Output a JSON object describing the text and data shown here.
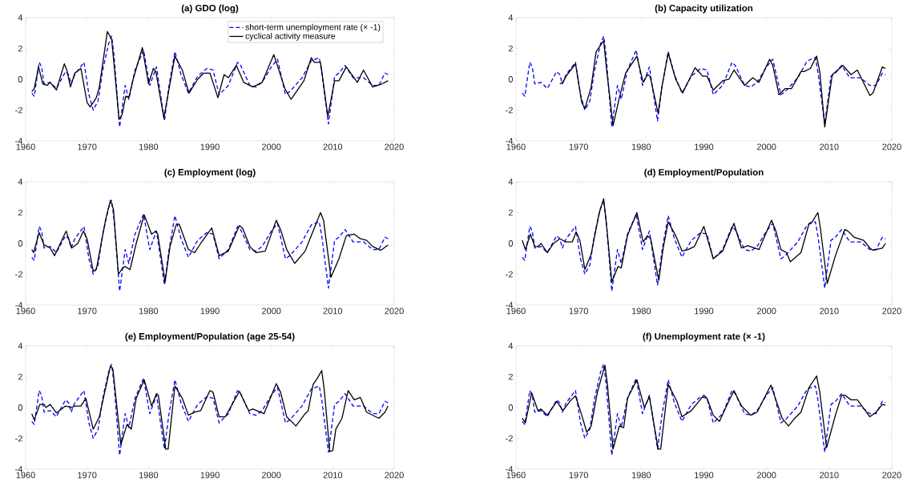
{
  "chart_data": [
    {
      "type": "line",
      "title": "(a) GDO (log)",
      "xlim": [
        1960,
        2020
      ],
      "xticks": [
        1960,
        1970,
        1980,
        1990,
        2000,
        2010,
        2020
      ],
      "ylim": [
        -4,
        4
      ],
      "yticks": [
        -4,
        -2,
        0,
        2,
        4
      ],
      "legend": "top right",
      "series": [
        {
          "name": "short-term unemployment rate (× -1)",
          "color": "#0000ff",
          "line_style": "dashed",
          "x": [
            1961,
            1961.4,
            1962.2,
            1962.6,
            1963,
            1964,
            1965,
            1966.5,
            1967,
            1967.4,
            1968,
            1969.5,
            1970.3,
            1971,
            1971.8,
            1972.5,
            1973.5,
            1974,
            1974.4,
            1975.3,
            1976.2,
            1976.8,
            1977.8,
            1979.2,
            1980.2,
            1981.3,
            1982.6,
            1983.3,
            1984.3,
            1985.3,
            1986.5,
            1988,
            1989.5,
            1990.5,
            1991.5,
            1993,
            1994.5,
            1995,
            1996.5,
            1997.5,
            1998.5,
            2000,
            2001,
            2002.3,
            2003,
            2005,
            2006.5,
            2007.8,
            2008.2,
            2009.3,
            2010.3,
            2011,
            2012,
            2013.3,
            2015,
            2016.5,
            2017.5,
            2018.5,
            2019
          ],
          "values": [
            -0.9,
            -1.1,
            1.1,
            0.8,
            -0.3,
            -0.2,
            -0.6,
            0.5,
            0.3,
            -0.3,
            0.3,
            1.1,
            -1.0,
            -2.0,
            -1.4,
            0.5,
            2.3,
            2.8,
            1.5,
            -3.1,
            -0.4,
            -1.3,
            0.6,
            1.9,
            -0.4,
            0.8,
            -2.7,
            -0.5,
            1.8,
            0.3,
            -0.9,
            0.2,
            0.7,
            0.6,
            -1.0,
            -0.4,
            1.1,
            0.9,
            -0.4,
            -0.5,
            -0.2,
            0.8,
            1.3,
            -1.0,
            -0.8,
            0.1,
            1.2,
            1.4,
            0.5,
            -2.9,
            0.2,
            0.4,
            0.9,
            0.1,
            0.1,
            -0.4,
            -0.4,
            0.4,
            0.3
          ]
        },
        {
          "name": "cyclical activity measure",
          "color": "#000000",
          "line_style": "solid",
          "x": [
            1961,
            1961.4,
            1962.1,
            1962.8,
            1963.5,
            1964,
            1965,
            1966.3,
            1966.7,
            1967.3,
            1968,
            1969,
            1970,
            1970.5,
            1971.5,
            1972,
            1973.3,
            1974,
            1974.5,
            1975.2,
            1975.7,
            1976.3,
            1976.8,
            1977.5,
            1979,
            1980,
            1980.8,
            1981.2,
            1982.5,
            1984.3,
            1985.5,
            1986.6,
            1988,
            1989,
            1990,
            1991.3,
            1992.3,
            1993,
            1994.3,
            1995.5,
            1997,
            1998.5,
            2000.4,
            2001.3,
            2002.2,
            2003.2,
            2005.3,
            2006.5,
            2007,
            2008,
            2009.2,
            2010.3,
            2011,
            2012.2,
            2014,
            2015,
            2016.5,
            2018,
            2019
          ],
          "values": [
            -0.8,
            -0.6,
            0.8,
            -0.3,
            -0.4,
            -0.2,
            -0.7,
            1.0,
            0.6,
            -0.5,
            0.4,
            0.7,
            -1.5,
            -1.8,
            -1.2,
            -0.5,
            3.1,
            2.6,
            0.5,
            -2.6,
            -2.3,
            -1.1,
            -1.2,
            0,
            2.05,
            -0.3,
            0.7,
            0.5,
            -2.5,
            1.5,
            0.6,
            -0.9,
            0,
            0.4,
            0.4,
            -1.2,
            0.3,
            0.1,
            0.9,
            -0.2,
            -0.5,
            -0.2,
            1.6,
            0.5,
            -0.6,
            -1.3,
            -0.1,
            1.4,
            1.1,
            1.1,
            -2.4,
            -0.1,
            -0.1,
            0.8,
            -0.2,
            0.6,
            -0.5,
            -0.3,
            -0.1
          ]
        }
      ]
    },
    {
      "type": "line",
      "title": "(b) Capacity utilization",
      "xlim": [
        1960,
        2020
      ],
      "xticks": [
        1960,
        1970,
        1980,
        1990,
        2000,
        2010,
        2020
      ],
      "ylim": [
        -4,
        4
      ],
      "yticks": [
        -4,
        -2,
        0,
        2,
        4
      ],
      "series": [
        {
          "color": "#0000ff",
          "line_style": "dashed",
          "x": [
            1961,
            1961.4,
            1962.2,
            1962.6,
            1963,
            1964,
            1965,
            1966.5,
            1967,
            1967.4,
            1968,
            1969.5,
            1970.3,
            1971,
            1971.8,
            1972.5,
            1973.5,
            1974,
            1974.4,
            1975.3,
            1976.2,
            1976.8,
            1977.8,
            1979.2,
            1980.2,
            1981.3,
            1982.6,
            1983.3,
            1984.3,
            1985.3,
            1986.5,
            1988,
            1989.5,
            1990.5,
            1991.5,
            1993,
            1994.5,
            1995,
            1996.5,
            1997.5,
            1998.5,
            2000,
            2001,
            2002.3,
            2003,
            2005,
            2006.5,
            2007.8,
            2008.2,
            2009.3,
            2010.3,
            2011,
            2012,
            2013.3,
            2015,
            2016.5,
            2017.5,
            2018.5,
            2019
          ],
          "values": [
            -0.9,
            -1.1,
            1.1,
            0.8,
            -0.3,
            -0.2,
            -0.6,
            0.5,
            0.3,
            -0.3,
            0.3,
            1.1,
            -1.0,
            -2.0,
            -1.4,
            0.5,
            2.3,
            2.8,
            1.5,
            -3.1,
            -0.4,
            -1.3,
            0.6,
            1.9,
            -0.4,
            0.8,
            -2.7,
            -0.5,
            1.8,
            0.3,
            -0.9,
            0.2,
            0.7,
            0.6,
            -1.0,
            -0.4,
            1.1,
            0.9,
            -0.4,
            -0.5,
            -0.2,
            0.8,
            1.3,
            -1.0,
            -0.8,
            0.1,
            1.2,
            1.4,
            0.5,
            -2.9,
            0.2,
            0.4,
            0.9,
            0.1,
            0.1,
            -0.4,
            -0.4,
            0.4,
            0.3
          ]
        },
        {
          "color": "#000000",
          "line_style": "solid",
          "x": [
            1967,
            1967.5,
            1968,
            1969.5,
            1970.5,
            1971,
            1972,
            1972.8,
            1974,
            1974.5,
            1975.5,
            1976.5,
            1977.5,
            1979.3,
            1980.3,
            1981,
            1981.4,
            1982.7,
            1983.3,
            1984.3,
            1985.5,
            1986.6,
            1988.6,
            1989.8,
            1990.5,
            1991.5,
            1993,
            1994,
            1994.8,
            1996.5,
            1997.8,
            1998.8,
            2000.5,
            2001,
            2002,
            2003,
            2004,
            2005.5,
            2006,
            2007,
            2008,
            2008.5,
            2009.3,
            2010.5,
            2012.2,
            2013.5,
            2014.5,
            2016.5,
            2017,
            2018.5,
            2019
          ],
          "values": [
            -0.3,
            -0.2,
            0.2,
            1.0,
            -1.5,
            -1.9,
            -0.5,
            1.8,
            2.5,
            0.5,
            -3.0,
            -1.2,
            0.4,
            1.5,
            -0.2,
            0.3,
            0.2,
            -2.2,
            -0.5,
            1.7,
            0,
            -0.9,
            0.75,
            0.2,
            0.2,
            -0.7,
            -0.1,
            0,
            0.6,
            -0.4,
            0.1,
            -0.2,
            1.3,
            0.9,
            -1.0,
            -0.6,
            -0.6,
            0.5,
            0.5,
            0.7,
            1.5,
            0.5,
            -3.1,
            0.3,
            0.9,
            0.3,
            0.6,
            -1.05,
            -0.9,
            0.8,
            0.7
          ]
        }
      ]
    },
    {
      "type": "line",
      "title": "(c) Employment (log)",
      "xlim": [
        1960,
        2020
      ],
      "xticks": [
        1960,
        1970,
        1980,
        1990,
        2000,
        2010,
        2020
      ],
      "ylim": [
        -4,
        4
      ],
      "yticks": [
        -4,
        -2,
        0,
        2,
        4
      ],
      "series": [
        {
          "color": "#0000ff",
          "line_style": "dashed",
          "x": [
            1961,
            1961.4,
            1962.2,
            1962.6,
            1963,
            1964,
            1965,
            1966.5,
            1967,
            1967.4,
            1968,
            1969.5,
            1970.3,
            1971,
            1971.8,
            1972.5,
            1973.5,
            1974,
            1974.4,
            1975.3,
            1976.2,
            1976.8,
            1977.8,
            1979.2,
            1980.2,
            1981.3,
            1982.6,
            1983.3,
            1984.3,
            1985.3,
            1986.5,
            1988,
            1989.5,
            1990.5,
            1991.5,
            1993,
            1994.5,
            1995,
            1996.5,
            1997.5,
            1998.5,
            2000,
            2001,
            2002.3,
            2003,
            2005,
            2006.5,
            2007.8,
            2008.2,
            2009.3,
            2010.3,
            2011,
            2012,
            2013.3,
            2015,
            2016.5,
            2017.5,
            2018.5,
            2019
          ],
          "values": [
            -0.9,
            -1.1,
            1.1,
            0.8,
            -0.3,
            -0.2,
            -0.6,
            0.5,
            0.3,
            -0.3,
            0.3,
            1.1,
            -1.0,
            -2.0,
            -1.4,
            0.5,
            2.3,
            2.8,
            1.5,
            -3.1,
            -0.4,
            -1.3,
            0.6,
            1.9,
            -0.4,
            0.8,
            -2.7,
            -0.5,
            1.8,
            0.3,
            -0.9,
            0.2,
            0.7,
            0.6,
            -1.0,
            -0.4,
            1.1,
            0.9,
            -0.4,
            -0.5,
            -0.2,
            0.8,
            1.3,
            -1.0,
            -0.8,
            0.1,
            1.2,
            1.4,
            0.5,
            -2.9,
            0.2,
            0.4,
            0.9,
            0.1,
            0.1,
            -0.4,
            -0.4,
            0.4,
            0.3
          ]
        },
        {
          "color": "#000000",
          "line_style": "solid",
          "x": [
            1961,
            1961.3,
            1962.2,
            1963,
            1964,
            1964.7,
            1966,
            1966.6,
            1967.5,
            1968.5,
            1969.4,
            1970,
            1971,
            1971.5,
            1973,
            1973.8,
            1974.3,
            1975.1,
            1975.8,
            1976.2,
            1977,
            1978,
            1979.3,
            1980.5,
            1981.2,
            1981.5,
            1982.7,
            1983.5,
            1984.5,
            1985,
            1986.5,
            1987.5,
            1988.5,
            1990.3,
            1991.5,
            1993,
            1994.8,
            1995.3,
            1996.5,
            1997.5,
            1999,
            2000.8,
            2001.5,
            2002.5,
            2003.8,
            2005.5,
            2006.5,
            2008,
            2008.5,
            2009.7,
            2011,
            2012.2,
            2013.5,
            2014.5,
            2015.5,
            2016.5,
            2017.8,
            2019
          ],
          "values": [
            -0.4,
            -0.6,
            0.7,
            -0.1,
            -0.3,
            -0.8,
            0.3,
            0.8,
            -0.3,
            0.0,
            0.8,
            0.3,
            -1.8,
            -1.7,
            1.5,
            2.8,
            2.2,
            -2.0,
            -1.6,
            -1.5,
            -1.7,
            0,
            1.85,
            0.6,
            0.8,
            0.6,
            -2.5,
            -0.2,
            1.2,
            1.25,
            -0.4,
            -0.6,
            0,
            1.0,
            -0.8,
            -0.5,
            1.15,
            1.0,
            -0.2,
            -0.6,
            -0.5,
            1.5,
            0.9,
            -0.4,
            -1.3,
            -0.5,
            0.5,
            2.0,
            1.5,
            -2.2,
            -1.0,
            0.5,
            0.6,
            0.3,
            0.2,
            -0.2,
            -0.45,
            -0.1
          ]
        }
      ]
    },
    {
      "type": "line",
      "title": "(d) Employment/Population",
      "xlim": [
        1960,
        2020
      ],
      "xticks": [
        1960,
        1970,
        1980,
        1990,
        2000,
        2010,
        2020
      ],
      "ylim": [
        -4,
        4
      ],
      "yticks": [
        -4,
        -2,
        0,
        2,
        4
      ],
      "series": [
        {
          "color": "#0000ff",
          "line_style": "dashed",
          "x": [
            1961,
            1961.4,
            1962.2,
            1962.6,
            1963,
            1964,
            1965,
            1966.5,
            1967,
            1967.4,
            1968,
            1969.5,
            1970.3,
            1971,
            1971.8,
            1972.5,
            1973.5,
            1974,
            1974.4,
            1975.3,
            1976.2,
            1976.8,
            1977.8,
            1979.2,
            1980.2,
            1981.3,
            1982.6,
            1983.3,
            1984.3,
            1985.3,
            1986.5,
            1988,
            1989.5,
            1990.5,
            1991.5,
            1993,
            1994.5,
            1995,
            1996.5,
            1997.5,
            1998.5,
            2000,
            2001,
            2002.3,
            2003,
            2005,
            2006.5,
            2007.8,
            2008.2,
            2009.3,
            2010.3,
            2011,
            2012,
            2013.3,
            2015,
            2016.5,
            2017.5,
            2018.5,
            2019
          ],
          "values": [
            -0.9,
            -1.1,
            1.1,
            0.8,
            -0.3,
            -0.2,
            -0.6,
            0.5,
            0.3,
            -0.3,
            0.3,
            1.1,
            -1.0,
            -2.0,
            -1.4,
            0.5,
            2.3,
            2.8,
            1.5,
            -3.1,
            -0.4,
            -1.3,
            0.6,
            1.9,
            -0.4,
            0.8,
            -2.7,
            -0.5,
            1.8,
            0.3,
            -0.9,
            0.2,
            0.7,
            0.6,
            -1.0,
            -0.4,
            1.1,
            0.9,
            -0.4,
            -0.5,
            -0.2,
            0.8,
            1.3,
            -1.0,
            -0.8,
            0.1,
            1.2,
            1.4,
            0.5,
            -2.9,
            0.2,
            0.4,
            0.9,
            0.1,
            0.1,
            -0.4,
            -0.4,
            0.4,
            0.3
          ]
        },
        {
          "color": "#000000",
          "line_style": "solid",
          "x": [
            1961,
            1961.5,
            1962.3,
            1963,
            1963.5,
            1964,
            1965,
            1966,
            1967,
            1968,
            1969,
            1969.6,
            1970.2,
            1971,
            1972,
            1973.3,
            1974,
            1974.5,
            1975.3,
            1976.3,
            1976.8,
            1977.8,
            1979.3,
            1980.3,
            1981,
            1981.5,
            1982.8,
            1983.5,
            1984.3,
            1985.5,
            1986.5,
            1987.5,
            1988.5,
            1990,
            1991.5,
            1993,
            1994.8,
            1996,
            1997,
            1998.8,
            2000.8,
            2001.5,
            2002.3,
            2003.2,
            2003.8,
            2005.5,
            2006.8,
            2007.3,
            2008.2,
            2008.6,
            2009.7,
            2011,
            2012.5,
            2013,
            2014,
            2015.5,
            2016.5,
            2017,
            2018.5,
            2019
          ],
          "values": [
            0.2,
            -0.4,
            0.6,
            -0.2,
            -0.2,
            0,
            -0.6,
            0,
            0.3,
            0.1,
            0.1,
            0.75,
            0.2,
            -1.7,
            -0.7,
            2.0,
            2.9,
            1.0,
            -2.5,
            -1.5,
            -1.6,
            0.5,
            2.0,
            0.1,
            0.5,
            0.3,
            -2.4,
            -0.3,
            1.4,
            0.5,
            -0.5,
            -0.4,
            -0.2,
            1.1,
            -1.0,
            -0.5,
            1.3,
            -0.3,
            -0.15,
            -0.4,
            1.5,
            0.8,
            -0.4,
            -0.6,
            -1.2,
            -0.6,
            1.3,
            1.4,
            2.0,
            1.0,
            -2.6,
            -0.8,
            0.9,
            0.8,
            0.4,
            0.2,
            -0.3,
            -0.45,
            -0.3,
            0.0
          ]
        }
      ]
    },
    {
      "type": "line",
      "title": "(e) Employment/Population (age 25-54)",
      "xlim": [
        1960,
        2020
      ],
      "xticks": [
        1960,
        1970,
        1980,
        1990,
        2000,
        2010,
        2020
      ],
      "ylim": [
        -4,
        4
      ],
      "yticks": [
        -4,
        -2,
        0,
        2,
        4
      ],
      "series": [
        {
          "color": "#0000ff",
          "line_style": "dashed",
          "x": [
            1961,
            1961.4,
            1962.2,
            1962.6,
            1963,
            1964,
            1965,
            1966.5,
            1967,
            1967.4,
            1968,
            1969.5,
            1970.3,
            1971,
            1971.8,
            1972.5,
            1973.5,
            1974,
            1974.4,
            1975.3,
            1976.2,
            1976.8,
            1977.8,
            1979.2,
            1980.2,
            1981.3,
            1982.6,
            1983.3,
            1984.3,
            1985.3,
            1986.5,
            1988,
            1989.5,
            1990.5,
            1991.5,
            1993,
            1994.5,
            1995,
            1996.5,
            1997.5,
            1998.5,
            2000,
            2001,
            2002.3,
            2003,
            2005,
            2006.5,
            2007.8,
            2008.2,
            2009.3,
            2010.3,
            2011,
            2012,
            2013.3,
            2015,
            2016.5,
            2017.5,
            2018.5,
            2019
          ],
          "values": [
            -0.9,
            -1.1,
            1.1,
            0.8,
            -0.3,
            -0.2,
            -0.6,
            0.5,
            0.3,
            -0.3,
            0.3,
            1.1,
            -1.0,
            -2.0,
            -1.4,
            0.5,
            2.3,
            2.8,
            1.5,
            -3.1,
            -0.4,
            -1.3,
            0.6,
            1.9,
            -0.4,
            0.8,
            -2.7,
            -0.5,
            1.8,
            0.3,
            -0.9,
            0.2,
            0.7,
            0.6,
            -1.0,
            -0.4,
            1.1,
            0.9,
            -0.4,
            -0.5,
            -0.2,
            0.8,
            1.3,
            -1.0,
            -0.8,
            0.1,
            1.2,
            1.4,
            0.5,
            -2.9,
            0.2,
            0.4,
            0.9,
            0.1,
            0.1,
            -0.4,
            -0.4,
            0.4,
            0.3
          ]
        },
        {
          "color": "#000000",
          "line_style": "solid",
          "x": [
            1961,
            1961.4,
            1962.3,
            1963,
            1963.3,
            1964,
            1965,
            1966.5,
            1967.5,
            1968,
            1969,
            1969.8,
            1971,
            1972,
            1973.8,
            1974.2,
            1975.5,
            1976.5,
            1977.2,
            1978,
            1979.3,
            1980.5,
            1981.3,
            1981.6,
            1982.8,
            1983.2,
            1984.3,
            1985.5,
            1986.5,
            1987.5,
            1988.5,
            1990,
            1990.5,
            1991.5,
            1992.5,
            1994.8,
            1996.3,
            1997,
            1998.8,
            2000.8,
            2001.5,
            2002.5,
            2004,
            2005.5,
            2006,
            2006.8,
            2007.5,
            2008.2,
            2008.6,
            2009.5,
            2010,
            2010.5,
            2011.5,
            2012.5,
            2013.5,
            2014.5,
            2015.5,
            2017.5,
            2018.5,
            2019
          ],
          "values": [
            -0.4,
            -0.8,
            0.2,
            0.2,
            0,
            0.2,
            -0.35,
            0.1,
            0,
            0.1,
            0.1,
            0.6,
            -1.4,
            -0.6,
            2.7,
            2.5,
            -2.4,
            -1.1,
            -1.4,
            0.6,
            1.8,
            0.1,
            0.9,
            0.8,
            -2.7,
            -2.7,
            1.4,
            0.6,
            -0.5,
            -0.3,
            -0.2,
            1.1,
            1.0,
            -0.6,
            -0.6,
            1.05,
            -0.2,
            -0.1,
            -0.4,
            1.55,
            1.0,
            -0.6,
            -1.2,
            -0.4,
            -0.2,
            1.5,
            1.9,
            2.4,
            1.2,
            -2.85,
            -2.8,
            -1.4,
            -0.7,
            1.1,
            0.5,
            0.65,
            -0.3,
            -0.7,
            -0.3,
            0.1
          ]
        }
      ]
    },
    {
      "type": "line",
      "title": "(f) Unemployment rate (× -1)",
      "xlim": [
        1960,
        2020
      ],
      "xticks": [
        1960,
        1970,
        1980,
        1990,
        2000,
        2010,
        2020
      ],
      "ylim": [
        -4,
        4
      ],
      "yticks": [
        -4,
        -2,
        0,
        2,
        4
      ],
      "series": [
        {
          "color": "#0000ff",
          "line_style": "dashed",
          "x": [
            1961,
            1961.4,
            1962.2,
            1962.6,
            1963,
            1964,
            1965,
            1966.5,
            1967,
            1967.4,
            1968,
            1969.5,
            1970.3,
            1971,
            1971.8,
            1972.5,
            1973.5,
            1974,
            1974.4,
            1975.3,
            1976.2,
            1976.8,
            1977.8,
            1979.2,
            1980.2,
            1981.3,
            1982.6,
            1983.3,
            1984.3,
            1985.3,
            1986.5,
            1988,
            1989.5,
            1990.5,
            1991.5,
            1993,
            1994.5,
            1995,
            1996.5,
            1997.5,
            1998.5,
            2000,
            2001,
            2002.3,
            2003,
            2005,
            2006.5,
            2007.8,
            2008.2,
            2009.3,
            2010.3,
            2011,
            2012,
            2013.3,
            2015,
            2016.5,
            2017.5,
            2018.5,
            2019
          ],
          "values": [
            -0.9,
            -1.1,
            1.1,
            0.8,
            -0.3,
            -0.2,
            -0.6,
            0.5,
            0.3,
            -0.3,
            0.3,
            1.1,
            -1.0,
            -2.0,
            -1.4,
            0.5,
            2.3,
            2.8,
            1.5,
            -3.1,
            -0.4,
            -1.3,
            0.6,
            1.9,
            -0.4,
            0.8,
            -2.7,
            -0.5,
            1.8,
            0.3,
            -0.9,
            0.2,
            0.7,
            0.6,
            -1.0,
            -0.4,
            1.1,
            0.9,
            -0.4,
            -0.5,
            -0.2,
            0.8,
            1.3,
            -1.0,
            -0.8,
            0.1,
            1.2,
            1.4,
            0.5,
            -2.9,
            0.2,
            0.4,
            0.9,
            0.1,
            0.1,
            -0.4,
            -0.4,
            0.4,
            0.3
          ]
        },
        {
          "color": "#000000",
          "line_style": "solid",
          "x": [
            1961,
            1961.5,
            1962.5,
            1963.5,
            1964,
            1965,
            1966.5,
            1967.5,
            1968.8,
            1969.5,
            1970.5,
            1971.3,
            1972,
            1973,
            1974.2,
            1974.6,
            1975.5,
            1976.5,
            1977.2,
            1977.8,
            1979.3,
            1980.5,
            1981.3,
            1982.7,
            1983.1,
            1984.3,
            1985.7,
            1986.5,
            1988,
            1990,
            1990.5,
            1991.5,
            1992.5,
            1993.5,
            1994.8,
            1996,
            1997.5,
            1998.5,
            2000.7,
            2001.5,
            2002.5,
            2003.5,
            2004.5,
            2005.5,
            2006.8,
            2008,
            2008.5,
            2009.6,
            2011,
            2012,
            2012.5,
            2013.5,
            2014.5,
            2016.5,
            2017.5,
            2018.5,
            2019
          ],
          "values": [
            -0.7,
            -1.0,
            0.95,
            -0.2,
            -0.1,
            -0.5,
            0.4,
            -0.2,
            0.5,
            0.75,
            -0.5,
            -1.6,
            -1.2,
            1.0,
            2.75,
            1.5,
            -2.7,
            -1.2,
            -1.3,
            0.6,
            1.8,
            0,
            0.7,
            -2.7,
            -2.7,
            1.5,
            0.4,
            -0.6,
            -0.2,
            0.8,
            0.6,
            -0.5,
            -0.9,
            0,
            1.1,
            0.1,
            -0.5,
            -0.3,
            1.45,
            0.5,
            -0.7,
            -1.2,
            -0.7,
            -0.3,
            1.3,
            2.05,
            1.0,
            -2.6,
            -0.5,
            0.8,
            0.8,
            0.5,
            0.5,
            -0.6,
            -0.3,
            0.2,
            0.15
          ]
        }
      ]
    }
  ]
}
